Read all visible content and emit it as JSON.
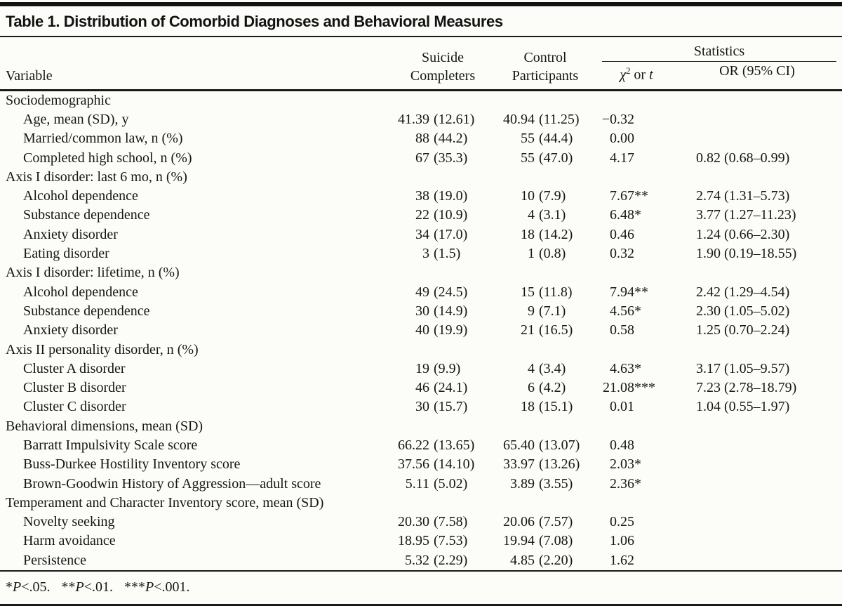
{
  "title": "Table 1. Distribution of Comorbid Diagnoses and Behavioral Measures",
  "colors": {
    "paper": "#fcfcf9",
    "ink": "#161616",
    "rule": "#1a1a1a"
  },
  "header": {
    "variable": "Variable",
    "suicide_line1": "Suicide",
    "suicide_line2": "Completers",
    "control_line1": "Control",
    "control_line2": "Participants",
    "statistics": "Statistics",
    "chi_symbol": "χ",
    "chi_exp": "2",
    "or_word": "or",
    "t_symbol": "t",
    "or_ci": "OR (95% CI)"
  },
  "table": {
    "rows": [
      {
        "type": "section",
        "label": "Sociodemographic"
      },
      {
        "type": "item",
        "label": "Age, mean (SD), y",
        "sc": "41.39 (12.61)",
        "cp": "40.94 (11.25)",
        "stat": "−0.32",
        "or": ""
      },
      {
        "type": "item",
        "label": "Married/common law, n (%)",
        "sc": "88 (44.2)",
        "cp": "55 (44.4)",
        "stat": "0.00",
        "or": ""
      },
      {
        "type": "item",
        "label": "Completed high school, n (%)",
        "sc": "67 (35.3)",
        "cp": "55 (47.0)",
        "stat": "4.17",
        "or": "0.82 (0.68–0.99)"
      },
      {
        "type": "section",
        "label": "Axis I disorder: last 6 mo, n (%)"
      },
      {
        "type": "item",
        "label": "Alcohol dependence",
        "sc": "38 (19.0)",
        "cp": "10 (7.9)",
        "stat": "7.67**",
        "or": "2.74 (1.31–5.73)"
      },
      {
        "type": "item",
        "label": "Substance dependence",
        "sc": "22 (10.9)",
        "cp": "4 (3.1)",
        "stat": "6.48*",
        "or": "3.77 (1.27–11.23)"
      },
      {
        "type": "item",
        "label": "Anxiety disorder",
        "sc": "34 (17.0)",
        "cp": "18 (14.2)",
        "stat": "0.46",
        "or": "1.24 (0.66–2.30)"
      },
      {
        "type": "item",
        "label": "Eating disorder",
        "sc": "3 (1.5)",
        "cp": "1 (0.8)",
        "stat": "0.32",
        "or": "1.90 (0.19–18.55)"
      },
      {
        "type": "section",
        "label": "Axis I disorder: lifetime, n (%)"
      },
      {
        "type": "item",
        "label": "Alcohol dependence",
        "sc": "49 (24.5)",
        "cp": "15 (11.8)",
        "stat": "7.94**",
        "or": "2.42 (1.29–4.54)"
      },
      {
        "type": "item",
        "label": "Substance dependence",
        "sc": "30 (14.9)",
        "cp": "9 (7.1)",
        "stat": "4.56*",
        "or": "2.30 (1.05–5.02)"
      },
      {
        "type": "item",
        "label": "Anxiety disorder",
        "sc": "40 (19.9)",
        "cp": "21 (16.5)",
        "stat": "0.58",
        "or": "1.25 (0.70–2.24)"
      },
      {
        "type": "section",
        "label": "Axis II personality disorder, n (%)"
      },
      {
        "type": "item",
        "label": "Cluster A disorder",
        "sc": "19 (9.9)",
        "cp": "4 (3.4)",
        "stat": "4.63*",
        "or": "3.17 (1.05–9.57)"
      },
      {
        "type": "item",
        "label": "Cluster B disorder",
        "sc": "46 (24.1)",
        "cp": "6 (4.2)",
        "stat": "21.08***",
        "or": "7.23 (2.78–18.79)"
      },
      {
        "type": "item",
        "label": "Cluster C disorder",
        "sc": "30 (15.7)",
        "cp": "18 (15.1)",
        "stat": "0.01",
        "or": "1.04 (0.55–1.97)"
      },
      {
        "type": "section",
        "label": "Behavioral dimensions, mean (SD)"
      },
      {
        "type": "item",
        "label": "Barratt Impulsivity Scale score",
        "sc": "66.22 (13.65)",
        "cp": "65.40 (13.07)",
        "stat": "0.48",
        "or": ""
      },
      {
        "type": "item",
        "label": "Buss-Durkee Hostility Inventory score",
        "sc": "37.56 (14.10)",
        "cp": "33.97 (13.26)",
        "stat": "2.03*",
        "or": ""
      },
      {
        "type": "item",
        "label": "Brown-Goodwin History of Aggression—adult score",
        "sc": "5.11 (5.02)",
        "cp": "3.89 (3.55)",
        "stat": "2.36*",
        "or": ""
      },
      {
        "type": "section",
        "label": "Temperament and Character Inventory score, mean (SD)"
      },
      {
        "type": "item",
        "label": "Novelty seeking",
        "sc": "20.30 (7.58)",
        "cp": "20.06 (7.57)",
        "stat": "0.25",
        "or": ""
      },
      {
        "type": "item",
        "label": "Harm avoidance",
        "sc": "18.95 (7.53)",
        "cp": "19.94 (7.08)",
        "stat": "1.06",
        "or": ""
      },
      {
        "type": "item",
        "label": "Persistence",
        "sc": "5.32 (2.29)",
        "cp": "4.85 (2.20)",
        "stat": "1.62",
        "or": ""
      }
    ]
  },
  "footnote": {
    "items": [
      {
        "stars": "*",
        "p": "P",
        "rest": "<.05."
      },
      {
        "stars": "**",
        "p": "P",
        "rest": "<.01."
      },
      {
        "stars": "***",
        "p": "P",
        "rest": "<.001."
      }
    ]
  }
}
